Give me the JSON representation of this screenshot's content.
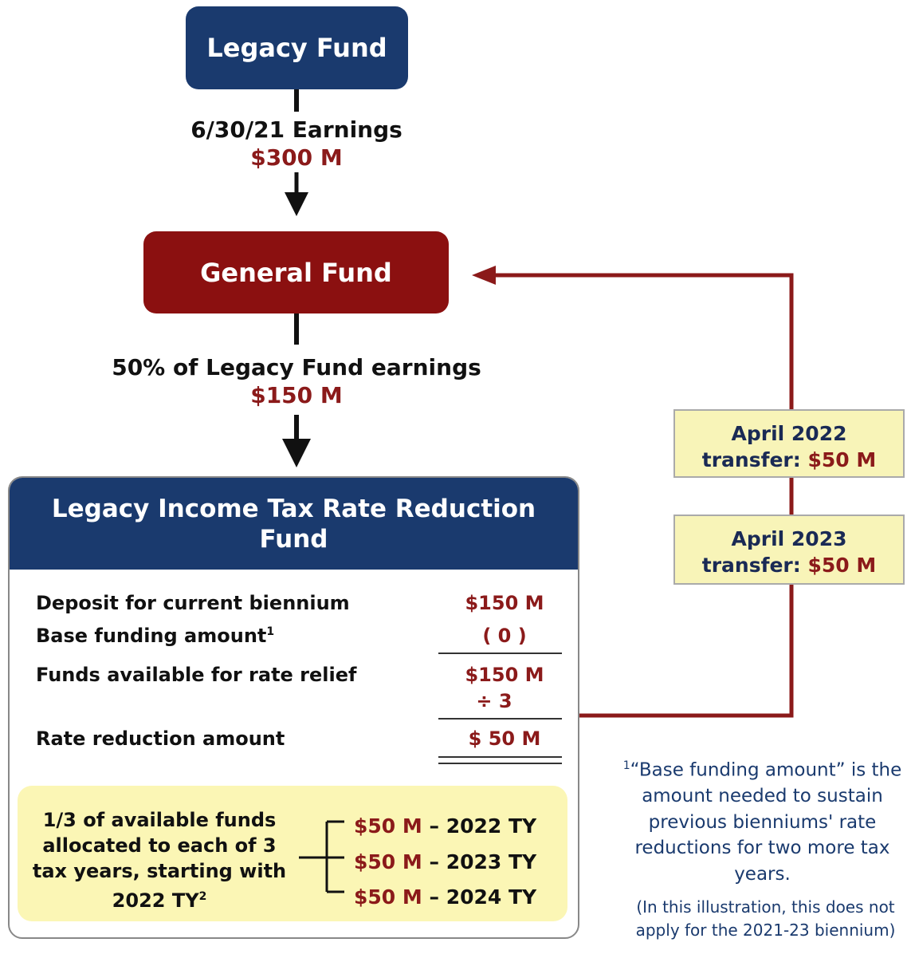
{
  "legacy_fund": {
    "label": "Legacy Fund"
  },
  "earnings": {
    "label": "6/30/21 Earnings",
    "amount": "$300 M"
  },
  "general_fund": {
    "label": "General Fund"
  },
  "share": {
    "label": "50% of Legacy Fund earnings",
    "amount": "$150 M"
  },
  "reduction_fund": {
    "title": "Legacy Income Tax Rate Reduction Fund",
    "rows": [
      {
        "label": "Deposit for current biennium",
        "value": "$150 M"
      },
      {
        "label": "Base funding amount",
        "sup": "1",
        "value": "( 0 )"
      },
      {
        "label": "Funds available for rate relief",
        "value": "$150 M"
      },
      {
        "value": "÷ 3"
      },
      {
        "label": "Rate reduction amount",
        "value": "$ 50 M"
      }
    ],
    "allocation": {
      "text": "1/3 of available funds allocated to each of 3 tax years, starting with 2022 TY",
      "sup": "2",
      "items": [
        {
          "amount": "$50 M",
          "label": "– 2022 TY"
        },
        {
          "amount": "$50 M",
          "label": "– 2023 TY"
        },
        {
          "amount": "$50 M",
          "label": "– 2024 TY"
        }
      ]
    }
  },
  "transfers": [
    {
      "date": "April 2022",
      "label": "transfer:",
      "amount": "$50 M"
    },
    {
      "date": "April 2023",
      "label": "transfer:",
      "amount": "$50 M"
    }
  ],
  "footnote": {
    "marker": "1",
    "text": "“Base funding amount” is the amount needed to sustain previous bienniums' rate reductions for two more tax years.",
    "note": "(In this illustration, this does not apply for the 2021-23 biennium)"
  }
}
